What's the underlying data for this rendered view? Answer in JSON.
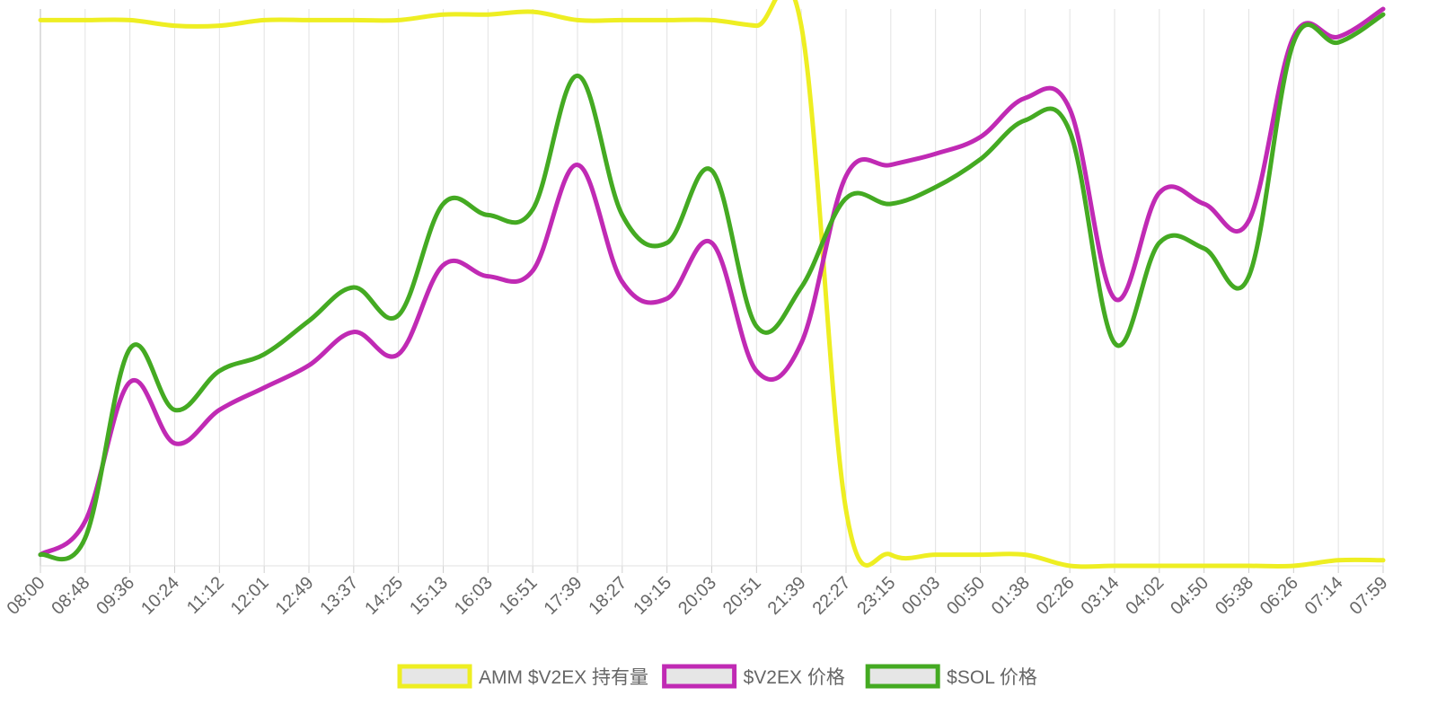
{
  "chart_data": {
    "type": "line",
    "title": "",
    "xlabel": "",
    "ylabel": "",
    "grid": true,
    "legend_position": "bottom",
    "y_axis_labels_shown": false,
    "x": [
      "08:00",
      "08:48",
      "09:36",
      "10:24",
      "11:12",
      "12:01",
      "12:49",
      "13:37",
      "14:25",
      "15:13",
      "16:03",
      "16:51",
      "17:39",
      "18:27",
      "19:15",
      "20:03",
      "20:51",
      "21:39",
      "22:27",
      "23:15",
      "00:03",
      "00:50",
      "01:38",
      "02:26",
      "03:14",
      "04:02",
      "04:50",
      "05:38",
      "06:26",
      "07:14",
      "07:59"
    ],
    "ylim": [
      0,
      100
    ],
    "series": [
      {
        "name": "AMM $V2EX 持有量",
        "color": "#eeee22",
        "values": [
          98,
          98,
          98,
          97,
          97,
          98,
          98,
          98,
          98,
          99,
          99,
          99.5,
          98,
          98,
          98,
          98,
          97,
          97,
          10,
          2,
          2,
          2,
          2,
          0,
          0,
          0,
          0,
          0,
          0,
          1,
          1
        ]
      },
      {
        "name": "$V2EX 价格",
        "color": "#c02ab4",
        "values": [
          2,
          8,
          33,
          22,
          28,
          32,
          36,
          42,
          38,
          54,
          52,
          53,
          72,
          51,
          48,
          58,
          35,
          40,
          70,
          72,
          74,
          77,
          84,
          82,
          48,
          67,
          65,
          62,
          95,
          95,
          100
        ]
      },
      {
        "name": "$SOL 价格",
        "color": "#44aa22",
        "values": [
          2,
          5,
          39,
          28,
          35,
          38,
          44,
          50,
          45,
          65,
          63,
          64,
          88,
          63,
          58,
          71,
          43,
          50,
          66,
          65,
          68,
          73,
          80,
          78,
          40,
          58,
          57,
          52,
          94,
          94,
          99
        ]
      }
    ]
  }
}
